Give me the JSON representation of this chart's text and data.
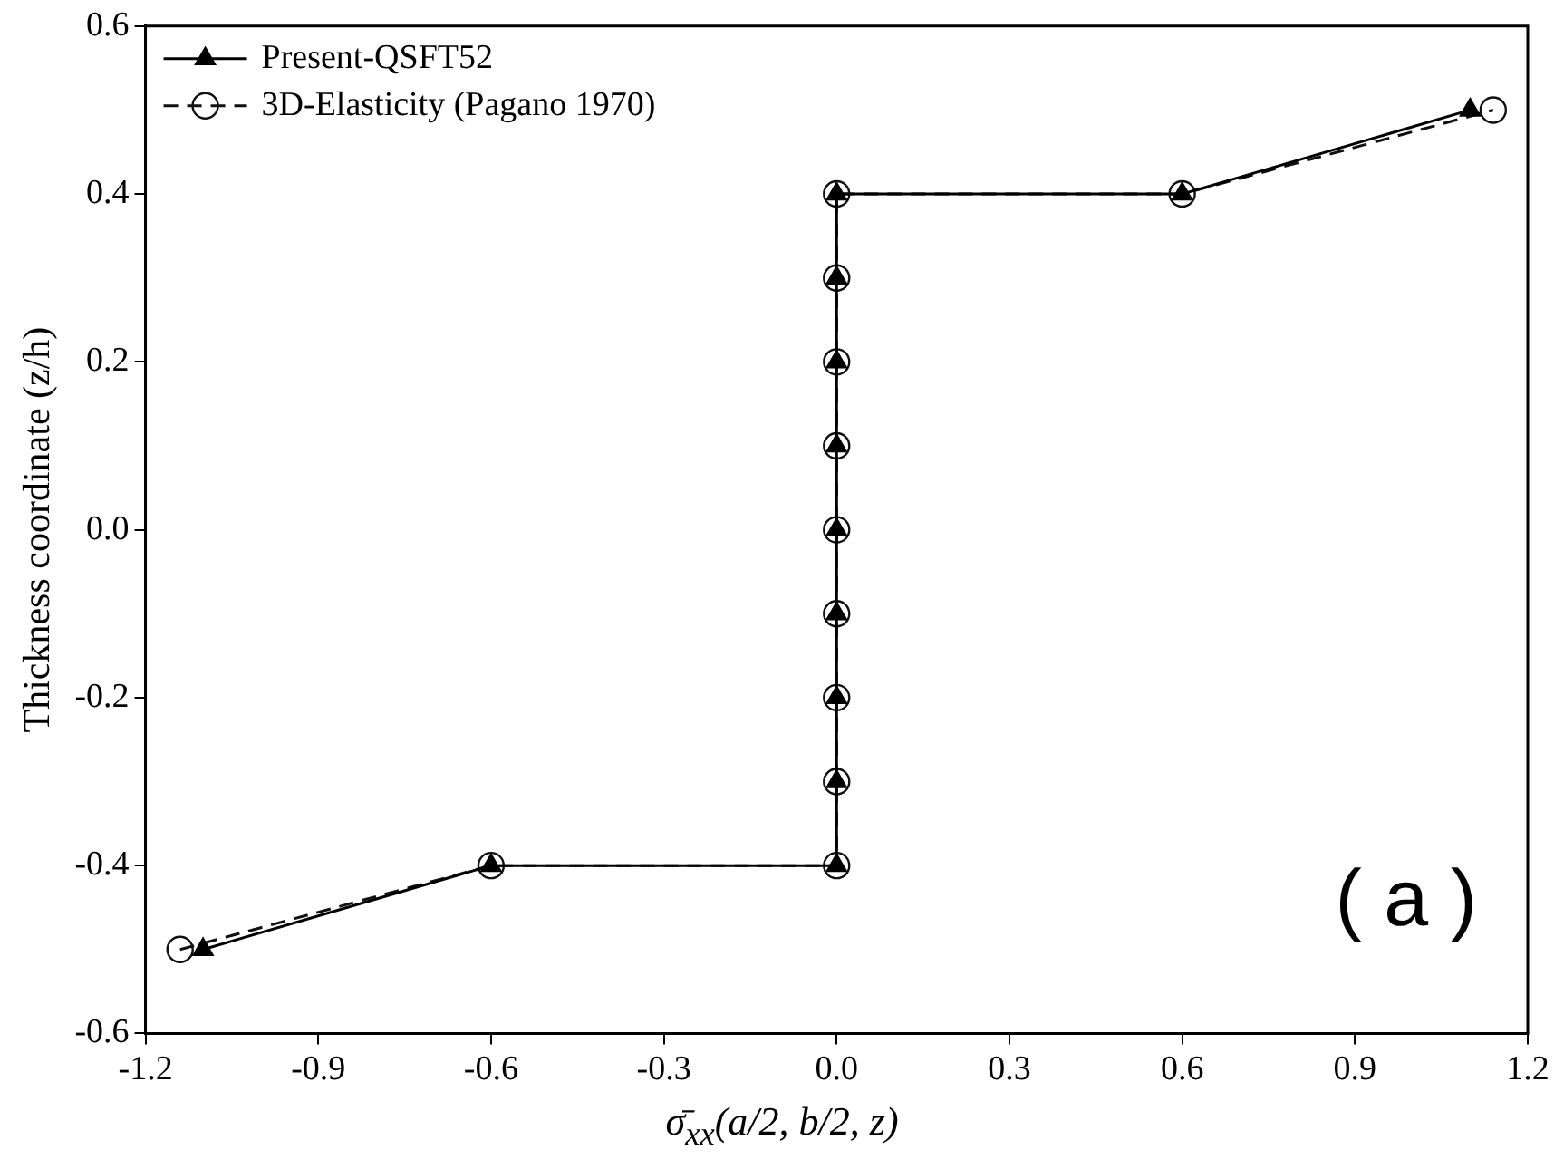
{
  "chart_data": {
    "type": "line",
    "xlabel": "σ̄$_{xx}$(a/2, b/2, z)",
    "ylabel": "Thickness coordinate (z/h)",
    "xlim": [
      -1.2,
      1.2
    ],
    "xticks": [
      -1.2,
      -0.9,
      -0.6,
      -0.3,
      {
        "value": 0,
        "label": "0.0"
      },
      0.3,
      0.6,
      0.9,
      1.2
    ],
    "ylim": [
      -0.6,
      0.6
    ],
    "yticks": [
      -0.6,
      -0.4,
      -0.2,
      {
        "value": 0,
        "label": "0.0"
      },
      0.2,
      0.4,
      0.6
    ],
    "grid": false,
    "legend": "top left",
    "annotations": [
      "( a )"
    ],
    "series": [
      {
        "name": "Present-QSFT52",
        "color": "#000000",
        "marker": "triangle",
        "line_style": "solid",
        "x": [
          -1.1,
          -0.6,
          0,
          0,
          0,
          0,
          0,
          0,
          0,
          0,
          0,
          0.6,
          1.1
        ],
        "values": [
          -0.5,
          -0.4,
          -0.4,
          -0.3,
          -0.2,
          -0.1,
          0.0,
          0.1,
          0.2,
          0.3,
          0.4,
          0.4,
          0.5
        ]
      },
      {
        "name": "3D-Elasticity (Pagano 1970)",
        "color": "#111111",
        "marker": "circle",
        "line_style": "dashed",
        "x": [
          -1.14,
          -0.6,
          0,
          0,
          0,
          0,
          0,
          0,
          0,
          0,
          0,
          0.6,
          1.14
        ],
        "values": [
          -0.5,
          -0.4,
          -0.4,
          -0.3,
          -0.2,
          -0.1,
          0.0,
          0.1,
          0.2,
          0.3,
          0.4,
          0.4,
          0.5
        ]
      }
    ]
  }
}
